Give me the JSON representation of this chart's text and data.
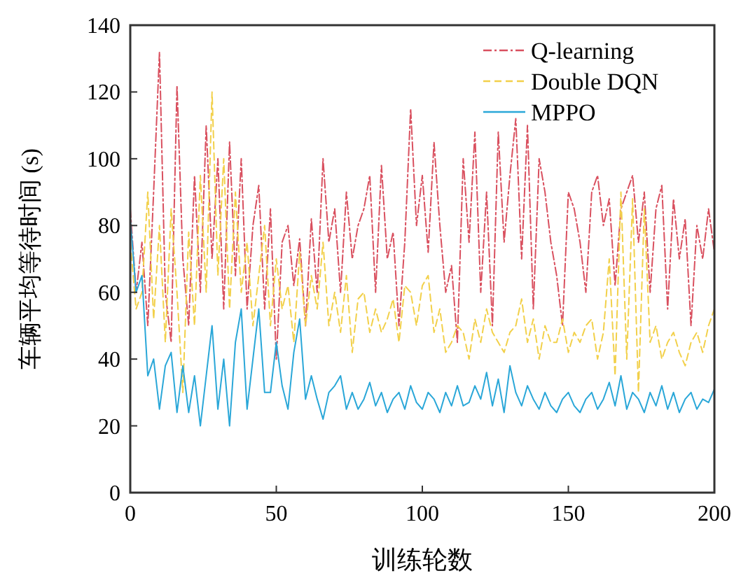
{
  "chart_data": {
    "type": "line",
    "xlabel": "训练轮数",
    "ylabel": "车辆平均等待时间 (s)",
    "xlim": [
      0,
      200
    ],
    "xticks": [
      0,
      50,
      100,
      150,
      200
    ],
    "ylim": [
      0,
      140
    ],
    "yticks": [
      0,
      20,
      40,
      60,
      80,
      100,
      120,
      140
    ],
    "legend": "top right",
    "x": [
      0,
      2,
      4,
      6,
      8,
      10,
      12,
      14,
      16,
      18,
      20,
      22,
      24,
      26,
      28,
      30,
      32,
      34,
      36,
      38,
      40,
      42,
      44,
      46,
      48,
      50,
      52,
      54,
      56,
      58,
      60,
      62,
      64,
      66,
      68,
      70,
      72,
      74,
      76,
      78,
      80,
      82,
      84,
      86,
      88,
      90,
      92,
      94,
      96,
      98,
      100,
      102,
      104,
      106,
      108,
      110,
      112,
      114,
      116,
      118,
      120,
      122,
      124,
      126,
      128,
      130,
      132,
      134,
      136,
      138,
      140,
      142,
      144,
      146,
      148,
      150,
      152,
      154,
      156,
      158,
      160,
      162,
      164,
      166,
      168,
      170,
      172,
      174,
      176,
      178,
      180,
      182,
      184,
      186,
      188,
      190,
      192,
      194,
      196,
      198,
      200
    ],
    "series": [
      {
        "name": "Q-learning",
        "color": "#d9505f",
        "line_style": "dashdot",
        "values": [
          85,
          60,
          75,
          50,
          90,
          132,
          60,
          45,
          122,
          70,
          50,
          95,
          60,
          110,
          70,
          100,
          55,
          105,
          65,
          100,
          55,
          80,
          92,
          55,
          85,
          40,
          75,
          80,
          62,
          76,
          50,
          82,
          60,
          100,
          75,
          85,
          60,
          90,
          70,
          80,
          85,
          95,
          60,
          98,
          70,
          78,
          50,
          75,
          115,
          80,
          95,
          72,
          105,
          80,
          60,
          68,
          45,
          100,
          75,
          108,
          60,
          90,
          50,
          108,
          75,
          95,
          112,
          70,
          110,
          55,
          100,
          90,
          75,
          65,
          50,
          90,
          85,
          75,
          60,
          90,
          95,
          80,
          88,
          62,
          85,
          90,
          95,
          75,
          90,
          60,
          85,
          92,
          55,
          88,
          70,
          82,
          50,
          80,
          70,
          85,
          72
        ]
      },
      {
        "name": "Double DQN",
        "color": "#f2d04a",
        "line_style": "dashed",
        "values": [
          75,
          55,
          60,
          90,
          52,
          80,
          45,
          85,
          60,
          30,
          78,
          50,
          95,
          60,
          120,
          65,
          100,
          55,
          90,
          60,
          75,
          50,
          65,
          80,
          50,
          70,
          55,
          62,
          45,
          72,
          50,
          65,
          55,
          75,
          50,
          60,
          48,
          65,
          42,
          58,
          60,
          48,
          55,
          48,
          52,
          58,
          45,
          62,
          60,
          50,
          62,
          65,
          48,
          55,
          42,
          45,
          50,
          48,
          40,
          52,
          45,
          55,
          48,
          45,
          42,
          48,
          50,
          58,
          45,
          52,
          40,
          50,
          45,
          45,
          52,
          42,
          48,
          45,
          50,
          52,
          40,
          48,
          70,
          35,
          90,
          40,
          88,
          30,
          85,
          45,
          50,
          40,
          45,
          48,
          42,
          38,
          45,
          48,
          42,
          50,
          55
        ]
      },
      {
        "name": "MPPO",
        "color": "#2aa7d8",
        "line_style": "solid",
        "values": [
          82,
          60,
          65,
          35,
          40,
          25,
          38,
          42,
          24,
          38,
          24,
          35,
          20,
          35,
          50,
          25,
          40,
          20,
          45,
          55,
          25,
          40,
          55,
          30,
          30,
          45,
          32,
          25,
          42,
          52,
          28,
          35,
          28,
          22,
          30,
          32,
          35,
          25,
          30,
          25,
          28,
          33,
          26,
          30,
          24,
          28,
          30,
          25,
          32,
          27,
          25,
          30,
          28,
          24,
          30,
          26,
          32,
          26,
          27,
          32,
          28,
          36,
          26,
          34,
          24,
          38,
          30,
          26,
          32,
          28,
          25,
          30,
          26,
          24,
          28,
          30,
          26,
          24,
          28,
          30,
          25,
          28,
          33,
          26,
          35,
          25,
          30,
          28,
          24,
          30,
          26,
          32,
          25,
          30,
          24,
          28,
          30,
          25,
          28,
          27,
          31
        ]
      }
    ]
  }
}
